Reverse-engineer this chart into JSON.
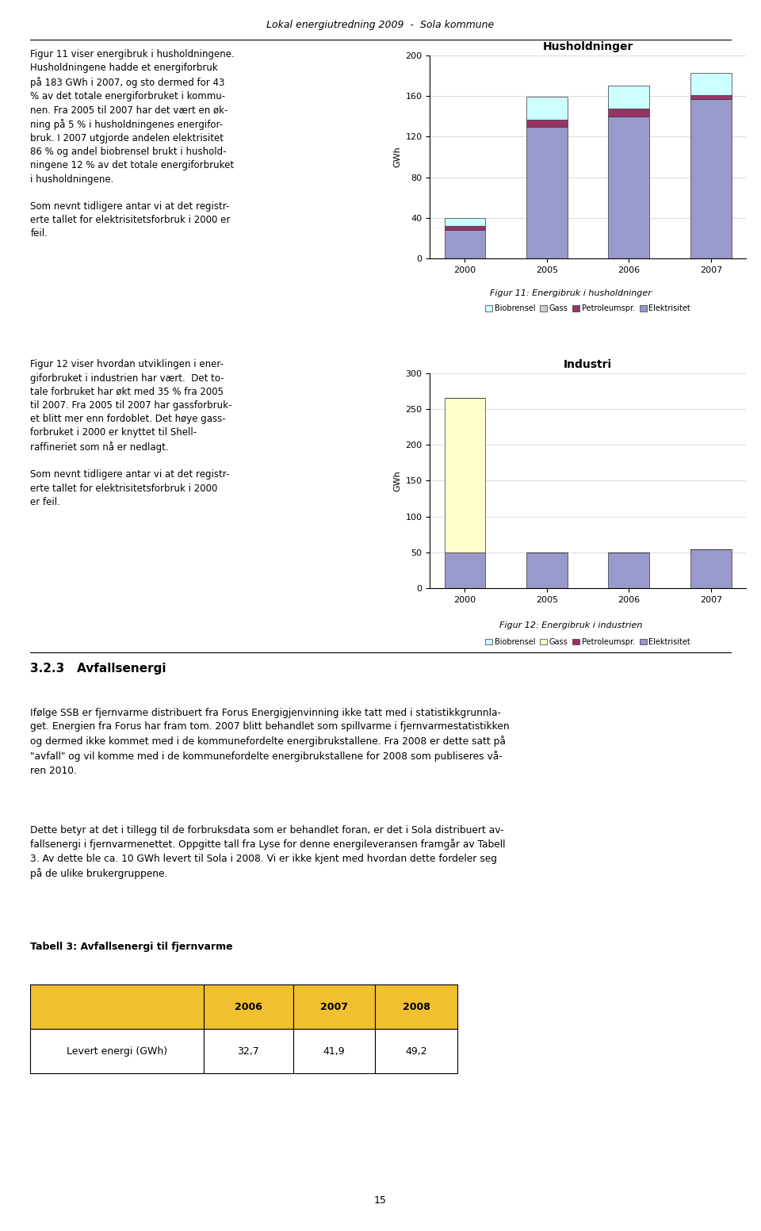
{
  "page_title": "Lokal energiutredning 2009  -  Sola kommune",
  "chart1": {
    "title": "Husholdninger",
    "ylabel": "GWh",
    "years": [
      "2000",
      "2005",
      "2006",
      "2007"
    ],
    "elektrisitet": [
      28,
      130,
      140,
      157
    ],
    "petroleumspr": [
      4,
      7,
      8,
      4
    ],
    "gass": [
      0,
      0,
      0,
      0
    ],
    "biobrensel": [
      8,
      22,
      22,
      22
    ],
    "ylim": [
      0,
      200
    ],
    "yticks": [
      0,
      40,
      80,
      120,
      160,
      200
    ],
    "color_elektrisitet": "#9999cc",
    "color_petroleumspr": "#993366",
    "color_gass": "#cccccc",
    "color_biobrensel": "#ccffff"
  },
  "chart2": {
    "title": "Industri",
    "ylabel": "GWh",
    "years": [
      "2000",
      "2005",
      "2006",
      "2007"
    ],
    "elektrisitet": [
      50,
      50,
      50,
      55
    ],
    "petroleumspr": [
      0,
      0,
      0,
      0
    ],
    "gass": [
      215,
      0,
      0,
      0
    ],
    "biobrensel": [
      0,
      0,
      0,
      0
    ],
    "ylim": [
      0,
      300
    ],
    "yticks": [
      0,
      50,
      100,
      150,
      200,
      250,
      300
    ],
    "color_elektrisitet": "#9999cc",
    "color_petroleumspr": "#993366",
    "color_gass": "#ffffcc",
    "color_biobrensel": "#ccffff"
  },
  "fig11_caption": "Figur 11: Energibruk i husholdninger",
  "fig12_caption": "Figur 12: Energibruk i industrien",
  "section_title": "3.2.3   Avfallsenergi",
  "table_title": "Tabell 3: Avfallsenergi til fjernvarme",
  "table_headers": [
    "",
    "2006",
    "2007",
    "2008"
  ],
  "table_row_label": "Levert energi (GWh)",
  "table_values": [
    "32,7",
    "41,9",
    "49,2"
  ],
  "page_number": "15",
  "legend_labels": [
    "Biobrensel",
    "Gass",
    "Petroleumspr.",
    "Elektrisitet"
  ]
}
